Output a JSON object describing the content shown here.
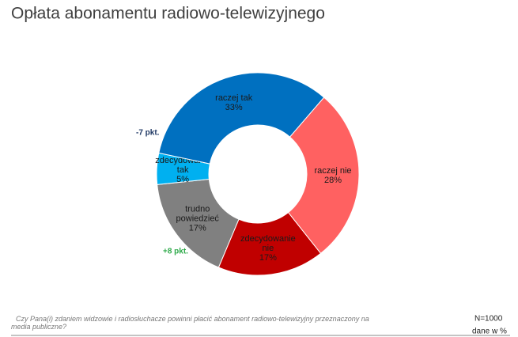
{
  "chart_data": {
    "type": "pie",
    "title": "Opłata abonamentu radiowo-telewizyjnego",
    "categories": [
      "raczej nie",
      "zdecydowanie nie",
      "trudno powiedzieć",
      "zdecydowanie tak",
      "raczej tak"
    ],
    "values": [
      28,
      17,
      17,
      5,
      33
    ],
    "value_labels": [
      "28%",
      "17%",
      "17%",
      "5%",
      "33%"
    ],
    "colors": [
      "#ff6161",
      "#c00000",
      "#808080",
      "#00b0f0",
      "#0070c0"
    ],
    "donut": true,
    "annotations": [
      "-7 pkt.",
      "+8 pkt."
    ],
    "footnote": "Czy Pana(i) zdaniem widzowie i radiosłuchacze powinni płacić abonament radiowo-telewizyjny przeznaczony na media publiczne?",
    "sample": "N=1000",
    "units_note": "dane w %"
  }
}
